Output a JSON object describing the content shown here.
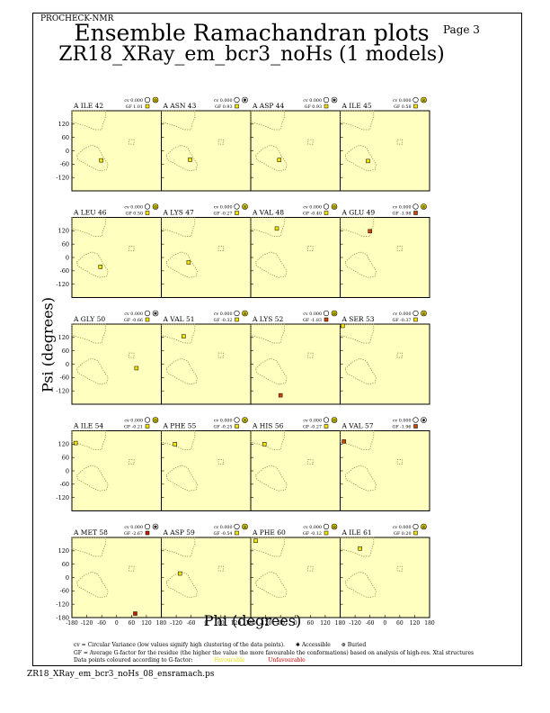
{
  "header": {
    "program": "PROCHECK-NMR",
    "page_label": "Page  3",
    "title": "Ensemble Ramachandran plots",
    "subtitle": "ZR18_XRay_em_bcr3_noHs (1 models)"
  },
  "axes": {
    "xlabel": "Phi (degrees)",
    "ylabel": "Psi (degrees)",
    "y_ticks": [
      "120",
      "60",
      "0",
      "-60",
      "-120"
    ],
    "last_row_y_ticks": [
      "120",
      "60",
      "0",
      "-60",
      "-120",
      "-180"
    ],
    "x_ticks": [
      "-180",
      "-120",
      "-60",
      "0",
      "60",
      "120",
      "180"
    ]
  },
  "chart_data": {
    "type": "scatter",
    "xlim": [
      -180,
      180
    ],
    "ylim": [
      -180,
      180
    ],
    "grid": false,
    "panels": [
      {
        "label": "A ILE 42",
        "cv": "cv 0.000",
        "gf": "GF  1.01",
        "state": "Accessible",
        "phi": -62,
        "psi": -43,
        "color": "#f2e200"
      },
      {
        "label": "A ASN 43",
        "cv": "cv 0.000",
        "gf": "GF  0.93",
        "state": "Buried",
        "phi": -64,
        "psi": -40,
        "color": "#f2e200"
      },
      {
        "label": "A ASP 44",
        "cv": "cv 0.000",
        "gf": "GF  0.93",
        "state": "Buried",
        "phi": -65,
        "psi": -41,
        "color": "#f2e200"
      },
      {
        "label": "A ILE 45",
        "cv": "cv 0.000",
        "gf": "GF  0.58",
        "state": "Accessible",
        "phi": -68,
        "psi": -46,
        "color": "#f2e200"
      },
      {
        "label": "A LEU 46",
        "cv": "cv 0.000",
        "gf": "GF  0.50",
        "state": "Accessible",
        "phi": -65,
        "psi": -42,
        "color": "#f2e200"
      },
      {
        "label": "A LYS 47",
        "cv": "cv 0.000",
        "gf": "GF -0.27",
        "state": "Accessible",
        "phi": -70,
        "psi": -22,
        "color": "#f2e200"
      },
      {
        "label": "A VAL 48",
        "cv": "cv 0.000",
        "gf": "GF -0.40",
        "state": "Accessible",
        "phi": -75,
        "psi": 130,
        "color": "#f2e200"
      },
      {
        "label": "A GLU 49",
        "cv": "cv 0.000",
        "gf": "GF -1.98",
        "state": "Accessible",
        "phi": -60,
        "psi": 118,
        "color": "#cc4400"
      },
      {
        "label": "A GLY 50",
        "cv": "cv 0.000",
        "gf": "GF -0.66",
        "state": "Buried",
        "phi": 80,
        "psi": -18,
        "color": "#f2e200"
      },
      {
        "label": "A VAL 51",
        "cv": "cv 0.000",
        "gf": "GF -0.32",
        "state": "Accessible",
        "phi": -90,
        "psi": 125,
        "color": "#f2e200"
      },
      {
        "label": "A LYS 52",
        "cv": "cv 0.000",
        "gf": "GF -1.83",
        "state": "Accessible",
        "phi": -60,
        "psi": -140,
        "color": "#cc4400"
      },
      {
        "label": "A SER 53",
        "cv": "cv 0.000",
        "gf": "GF -0.37",
        "state": "Accessible",
        "phi": -170,
        "psi": 172,
        "color": "#f2e200"
      },
      {
        "label": "A ILE 54",
        "cv": "cv 0.000",
        "gf": "GF -0.21",
        "state": "Accessible",
        "phi": -165,
        "psi": 125,
        "color": "#f2e200"
      },
      {
        "label": "A PHE 55",
        "cv": "cv 0.000",
        "gf": "GF -0.25",
        "state": "Accessible",
        "phi": -125,
        "psi": 120,
        "color": "#f2e200"
      },
      {
        "label": "A HIS 56",
        "cv": "cv 0.000",
        "gf": "GF -0.27",
        "state": "Accessible",
        "phi": -125,
        "psi": 120,
        "color": "#f2e200"
      },
      {
        "label": "A VAL 57",
        "cv": "cv 0.000",
        "gf": "GF -1.96",
        "state": "Buried",
        "phi": -165,
        "psi": 132,
        "color": "#cc4400"
      },
      {
        "label": "A MET 58",
        "cv": "cv 0.000",
        "gf": "GF -2.67",
        "state": "Buried",
        "phi": 75,
        "psi": -162,
        "color": "#bb2200"
      },
      {
        "label": "A ASP 59",
        "cv": "cv 0.000",
        "gf": "GF -0.54",
        "state": "Accessible",
        "phi": -105,
        "psi": 18,
        "color": "#f2e200"
      },
      {
        "label": "A PHE 60",
        "cv": "cv 0.000",
        "gf": "GF -0.12",
        "state": "Accessible",
        "phi": -160,
        "psi": 165,
        "color": "#f2e200"
      },
      {
        "label": "A ILE 61",
        "cv": "cv 0.000",
        "gf": "GF  0.20",
        "state": "Accessible",
        "phi": -100,
        "psi": 130,
        "color": "#f2e200"
      }
    ]
  },
  "footnote": {
    "line1": "cv = Circular Variance (low values signify high clustering of the data points).",
    "accessible": "Accessible",
    "buried": "Buried",
    "line2": "GF = Average G-factor for the residue (the higher the value the more favourable the conformations) based on analysis of high-res. Xtal structures",
    "line3": "Data points coloured according to G-factor:",
    "favourable": "Favourable",
    "unfavourable": "Unfavourable"
  },
  "filename": "ZR18_XRay_em_bcr3_noHs_08_ensramach.ps",
  "colors": {
    "panel_bg": "#ffffc0",
    "region_outline": "#8a7a30",
    "favourable": "#f2e200",
    "unfavourable": "#cc0000"
  }
}
